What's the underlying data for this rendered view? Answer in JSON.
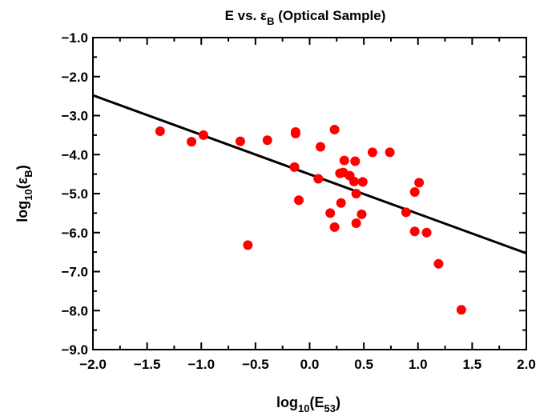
{
  "chart_data": {
    "type": "scatter",
    "title": {
      "main": "E vs. ",
      "symbol": "ε",
      "sub": "B",
      "rest": " (Optical Sample)"
    },
    "xlabel": {
      "pre": "log",
      "sub": "10",
      "mid": "(E",
      "sub2": "53",
      "post": ")"
    },
    "ylabel": {
      "pre": "log",
      "sub": "10",
      "mid": "(ε",
      "sub2": "B",
      "post": ")"
    },
    "xlim": [
      -2.0,
      2.0
    ],
    "ylim": [
      -9.0,
      -1.0
    ],
    "xticks": [
      -2.0,
      -1.5,
      -1.0,
      -0.5,
      0.0,
      0.5,
      1.0,
      1.5,
      2.0
    ],
    "xtick_labels": [
      "−2.0",
      "−1.5",
      "−1.0",
      "−0.5",
      "0.0",
      "0.5",
      "1.0",
      "1.5",
      "2.0"
    ],
    "yticks": [
      -1.0,
      -2.0,
      -3.0,
      -4.0,
      -5.0,
      -6.0,
      -7.0,
      -8.0,
      -9.0
    ],
    "ytick_labels": [
      "−1.0",
      "−2.0",
      "−3.0",
      "−4.0",
      "−5.0",
      "−6.0",
      "−7.0",
      "−8.0",
      "−9.0"
    ],
    "grid": false,
    "marker_color": "#ff0000",
    "line_color": "#000000",
    "fit_line": {
      "x": [
        -2.0,
        2.0
      ],
      "y": [
        -2.48,
        -6.53
      ]
    },
    "points": [
      {
        "x": -1.38,
        "y": -3.4
      },
      {
        "x": -1.09,
        "y": -3.67
      },
      {
        "x": -0.98,
        "y": -3.5
      },
      {
        "x": -0.64,
        "y": -3.66
      },
      {
        "x": -0.57,
        "y": -6.32
      },
      {
        "x": -0.39,
        "y": -3.63
      },
      {
        "x": -0.13,
        "y": -3.42
      },
      {
        "x": -0.13,
        "y": -3.46
      },
      {
        "x": -0.14,
        "y": -4.32
      },
      {
        "x": -0.1,
        "y": -5.17
      },
      {
        "x": 0.08,
        "y": -4.62
      },
      {
        "x": 0.1,
        "y": -3.8
      },
      {
        "x": 0.19,
        "y": -5.5
      },
      {
        "x": 0.23,
        "y": -5.86
      },
      {
        "x": 0.23,
        "y": -3.36
      },
      {
        "x": 0.28,
        "y": -4.48
      },
      {
        "x": 0.29,
        "y": -5.24
      },
      {
        "x": 0.31,
        "y": -4.46
      },
      {
        "x": 0.32,
        "y": -4.15
      },
      {
        "x": 0.37,
        "y": -4.54
      },
      {
        "x": 0.41,
        "y": -4.69
      },
      {
        "x": 0.42,
        "y": -4.17
      },
      {
        "x": 0.43,
        "y": -5.0
      },
      {
        "x": 0.43,
        "y": -5.76
      },
      {
        "x": 0.48,
        "y": -5.53
      },
      {
        "x": 0.49,
        "y": -4.7
      },
      {
        "x": 0.58,
        "y": -3.94
      },
      {
        "x": 0.74,
        "y": -3.94
      },
      {
        "x": 0.89,
        "y": -5.48
      },
      {
        "x": 0.97,
        "y": -4.96
      },
      {
        "x": 0.97,
        "y": -5.97
      },
      {
        "x": 1.01,
        "y": -4.72
      },
      {
        "x": 1.08,
        "y": -6.0
      },
      {
        "x": 1.19,
        "y": -6.8
      },
      {
        "x": 1.4,
        "y": -7.98
      }
    ]
  }
}
